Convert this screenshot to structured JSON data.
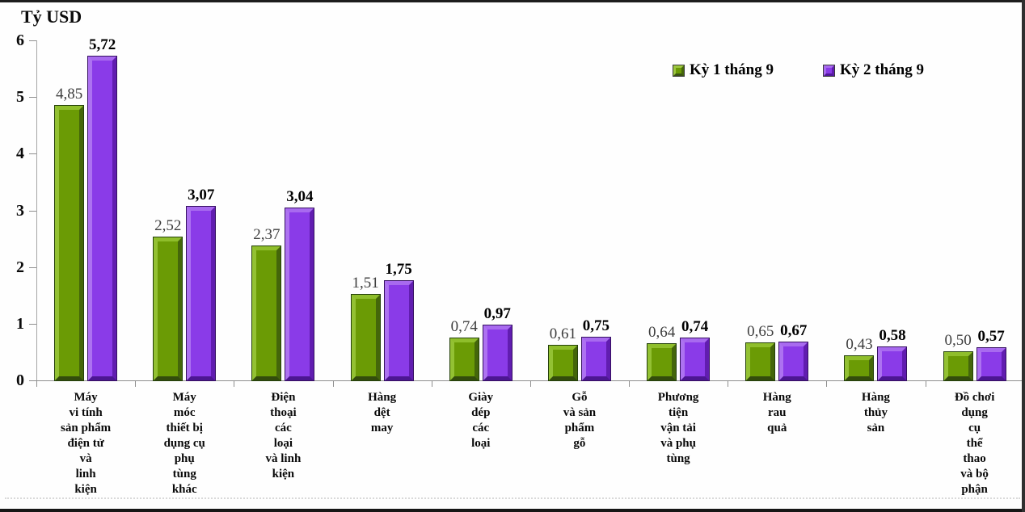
{
  "chart_data": {
    "type": "bar",
    "title": "Tỷ USD",
    "ylabel": "Tỷ USD",
    "xlabel": "",
    "ylim": [
      0,
      6
    ],
    "yticks": [
      0,
      1,
      2,
      3,
      4,
      5,
      6
    ],
    "grid": false,
    "legend_position": "top-right",
    "categories": [
      "Máy\nvi tính\nsản phẩm\nđiện tử\nvà\nlinh\nkiện",
      "Máy\nmóc\nthiết bị\ndụng cụ\nphụ\ntùng\nkhác",
      "Điện\nthoại\ncác\nloại\nvà linh\nkiện",
      "Hàng\ndệt\nmay",
      "Giày\ndép\ncác\nloại",
      "Gỗ\nvà sản\nphẩm\ngỗ",
      "Phương\ntiện\nvận tải\nvà phụ\ntùng",
      "Hàng\nrau\nquả",
      "Hàng\nthủy\nsản",
      "Đồ chơi\ndụng\ncụ\nthể\nthao\nvà bộ\nphận"
    ],
    "series": [
      {
        "name": "Kỳ 1 tháng 9",
        "color": "#6B9B05",
        "values": [
          4.85,
          2.52,
          2.37,
          1.51,
          0.74,
          0.61,
          0.64,
          0.65,
          0.43,
          0.5
        ],
        "labels": [
          "4,85",
          "2,52",
          "2,37",
          "1,51",
          "0,74",
          "0,61",
          "0,64",
          "0,65",
          "0,43",
          "0,50"
        ]
      },
      {
        "name": "Kỳ 2 tháng 9",
        "color": "#8A3BE8",
        "values": [
          5.72,
          3.07,
          3.04,
          1.75,
          0.97,
          0.75,
          0.74,
          0.67,
          0.58,
          0.57
        ],
        "labels": [
          "5,72",
          "3,07",
          "3,04",
          "1,75",
          "0,97",
          "0,75",
          "0,74",
          "0,67",
          "0,58",
          "0,57"
        ]
      }
    ]
  }
}
